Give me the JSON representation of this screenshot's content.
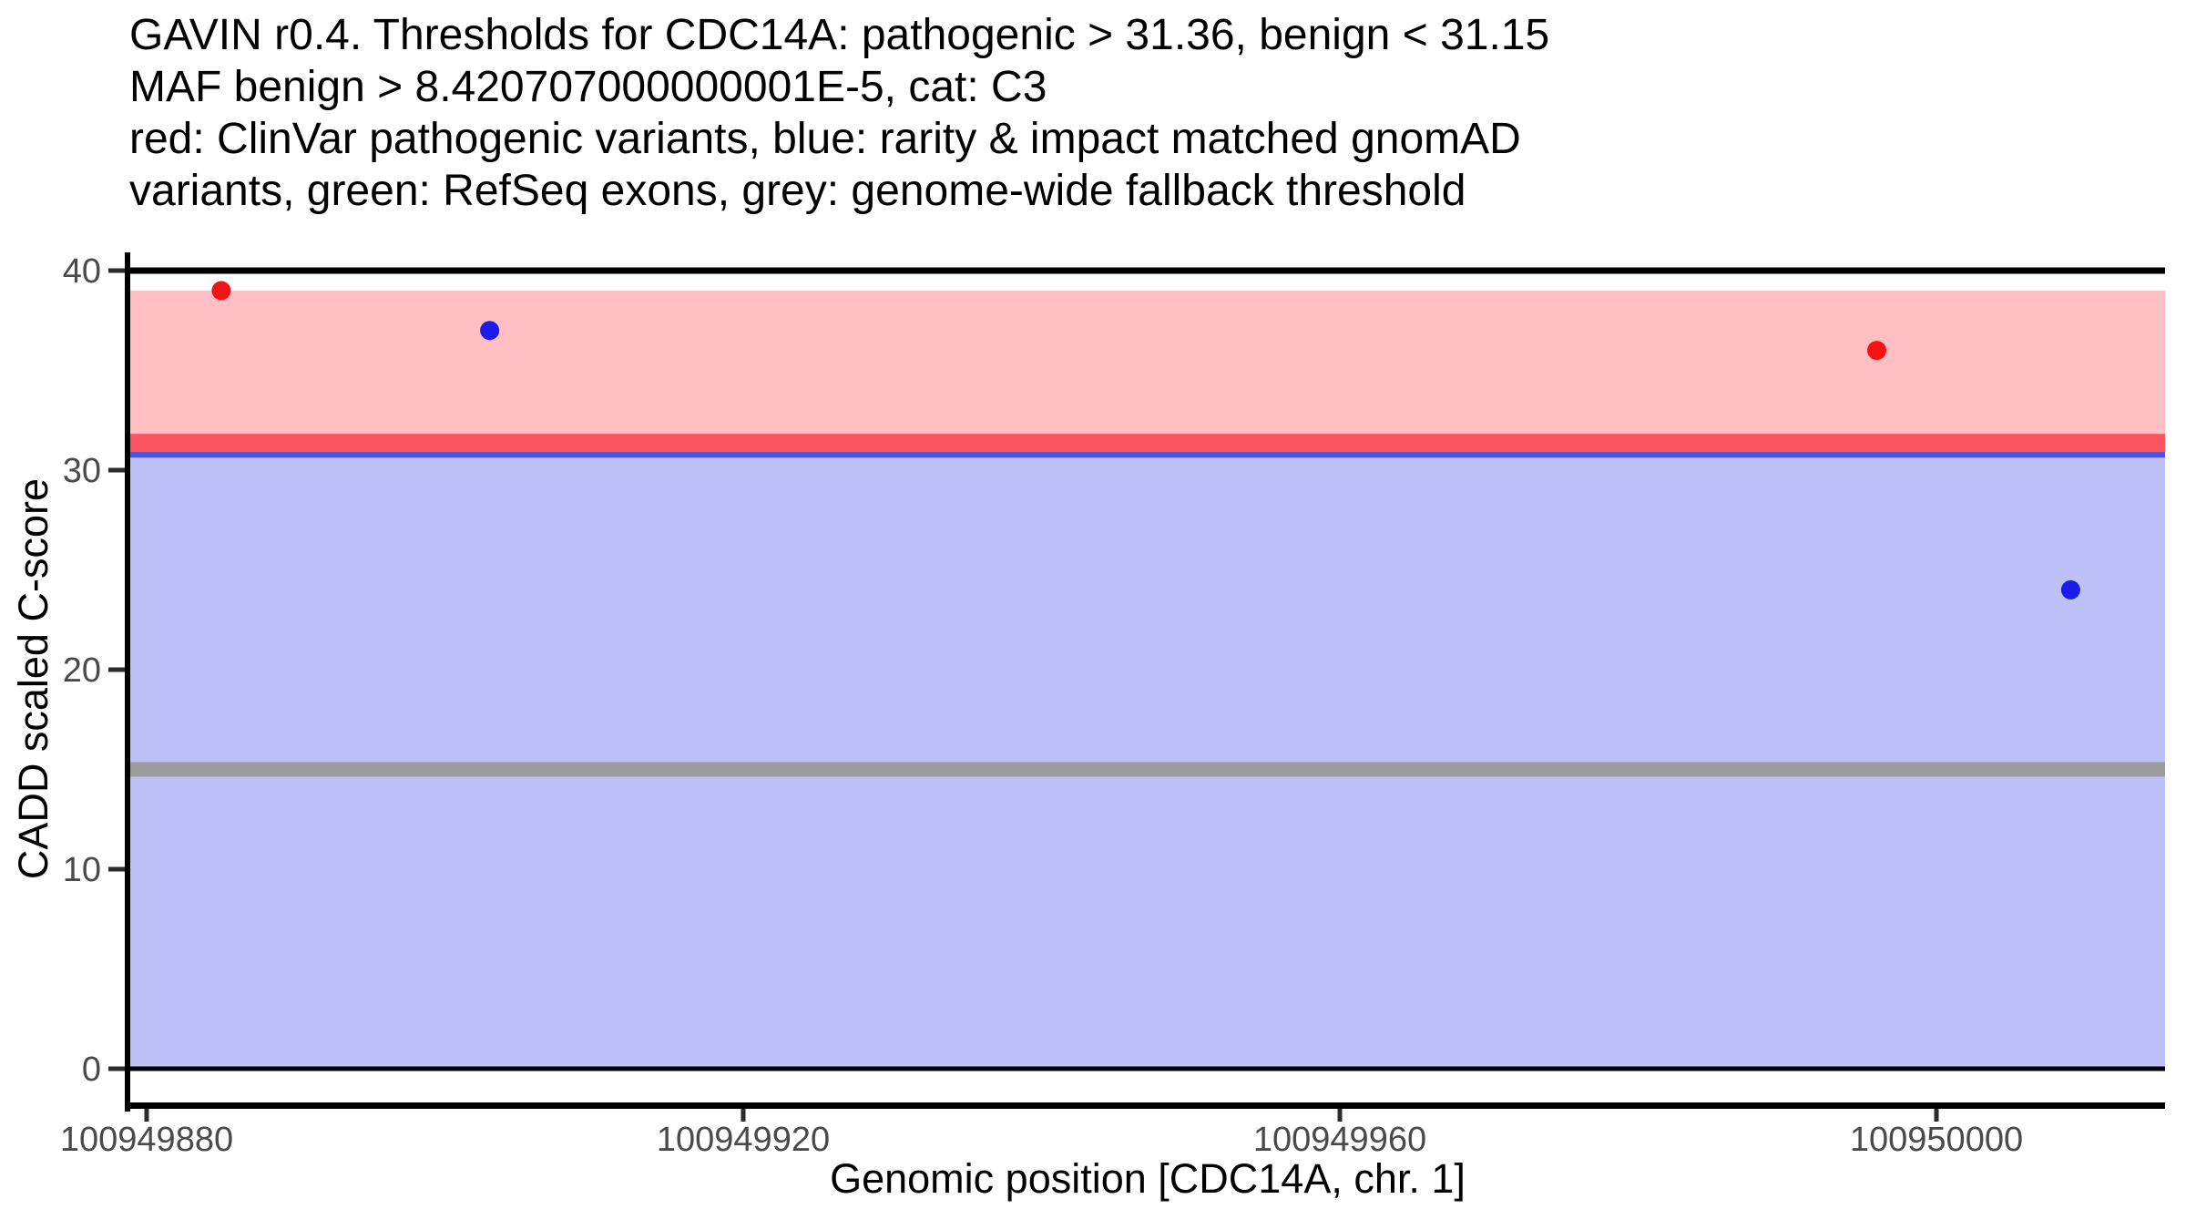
{
  "title": {
    "lines": [
      "GAVIN r0.4. Thresholds for CDC14A: pathogenic > 31.36, benign < 31.15",
      "MAF benign > 8.420707000000001E-5, cat: C3",
      "red: ClinVar pathogenic variants, blue: rarity & impact matched gnomAD",
      "variants, green: RefSeq exons, grey: genome-wide fallback threshold"
    ]
  },
  "x_axis": {
    "label": "Genomic position [CDC14A, chr. 1]"
  },
  "y_axis": {
    "label": "CADD scaled C-score"
  },
  "chart_data": {
    "type": "scatter",
    "title": "GAVIN r0.4. Thresholds for CDC14A: pathogenic > 31.36, benign < 31.15 MAF benign > 8.420707000000001E-5, cat: C3",
    "subtitle": "red: ClinVar pathogenic variants, blue: rarity & impact matched gnomAD variants, green: RefSeq exons, grey: genome-wide fallback threshold",
    "xlabel": "Genomic position [CDC14A, chr. 1]",
    "ylabel": "CADD scaled C-score",
    "tool": "GAVIN r0.4",
    "gene": "CDC14A",
    "chromosome": "1",
    "category": "C3",
    "thresholds": {
      "pathogenic_gt": 31.36,
      "benign_lt": 31.15,
      "maf_benign_gt": "8.420707000000001E-5",
      "genome_wide_fallback": 15
    },
    "x_ticks": [
      100949880,
      100949920,
      100949960,
      100950000
    ],
    "y_ticks": [
      0,
      10,
      20,
      30,
      40
    ],
    "x_range": [
      100949879,
      100950015
    ],
    "y_range": [
      0,
      40
    ],
    "grid": false,
    "legend_position": "none",
    "regions": [
      {
        "name": "pathogenic-region",
        "ymin": 31.36,
        "ymax": 39,
        "color": "#ffbfc3"
      },
      {
        "name": "benign-region",
        "ymin": 0,
        "ymax": 31.15,
        "color": "#bdc1f8"
      }
    ],
    "hlines": [
      {
        "name": "fallback-threshold-line",
        "y": 15,
        "color": "#9c9c9f",
        "thickness_px": 16
      },
      {
        "name": "benign-threshold-line",
        "y": 31.15,
        "color": "#4b55e4",
        "thickness_px": 23
      },
      {
        "name": "pathogenic-threshold-line",
        "y": 31.36,
        "color": "#fb5460",
        "thickness_px": 20
      },
      {
        "name": "frame-line-top",
        "y": 40,
        "color": "#000000",
        "thickness_px": 7
      },
      {
        "name": "frame-line-zero",
        "y": 0,
        "color": "#000000",
        "thickness_px": 5
      }
    ],
    "series": [
      {
        "name": "ClinVar pathogenic variants",
        "color": "#f51414",
        "points": [
          [
            100949885,
            39
          ],
          [
            100949996,
            36
          ]
        ]
      },
      {
        "name": "rarity & impact matched gnomAD variants",
        "color": "#1b1bec",
        "points": [
          [
            100949903,
            37
          ],
          [
            100950009,
            24
          ]
        ]
      }
    ],
    "point_radius_px": 10.5
  }
}
